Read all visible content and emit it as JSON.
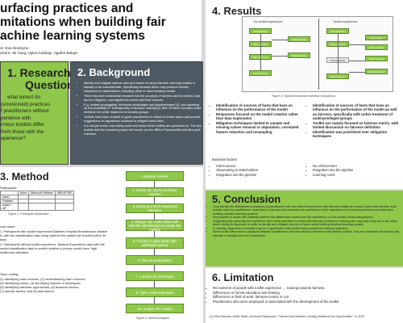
{
  "header": {
    "title_lines": [
      "urfacing practices and",
      "mitations when building fair",
      "achine learning systems"
    ],
    "authors_line1": "or: Eva Nontoyne",
    "authors_line2": "visors: Jie Yang, Ujwal Gadiraju, Agathe Balayn"
  },
  "research_question": {
    "title_line1": "1. Research",
    "title_line2": "Question",
    "lines": [
      "what extent do",
      "(envisioned) practices",
      "f practitioners without",
      "perience with",
      "irness toolkits differ",
      "from those with the",
      "xperience?"
    ]
  },
  "background": {
    "title": "2. Background",
    "items": [
      "Identify and mitigate various risks and harms of using Machine Learning models in industry is an essential task. Specifically because these may produce harmful outcomes for stakeholders, including unfair or discriminatory results.",
      "There has been substantial research into the concepts of fairness and its metrics, bias and its mitigation, and algorithmic harms and their sources.",
      "E.g. models propagating \"structural advantages and disadvantages\"[1], and speeding up the possibility of \"homogeneity of decision making\"[2]. Both of these concepts could reinforce the unfair treatment of minority groups.",
      "Toolkits have been created to guide practitioners to reflect on these topics and provide suggestions on algorithmic solutions to mitigate these risks.",
      "It is not yet known how widely used and useful these toolkits are perceived as. The two toolkits that this research project will involve are the IBM AI Fairness360 and Microsoft Fairlearn."
    ]
  },
  "method": {
    "title": "3. Method",
    "participants_label": "Participants:",
    "table": {
      "headers": [
        "",
        "None",
        "Microsoft Fairlearn",
        "IBM AIF360"
      ],
      "rows": [
        [
          "None",
          "",
          "",
          ""
        ],
        [
          "Fairlearn",
          "",
          "",
          ""
        ],
        [
          "Aware / AIF",
          "",
          "",
          ""
        ]
      ]
    },
    "table_caption": "Figure 1: Participant distribution",
    "use_cases_label": "Use cases:",
    "use_cases": [
      "1. Participants with toolkit experience:Diabetes Hospital Readmission dataset A, with the classification task being whether the patient will readmit within 30 days",
      "2. Participants without toolkit experience: Medical Expenditure data with the model classification task to predict whether a person would have 'high' healthcare utilization."
    ],
    "open_coding_label": "Open coding:",
    "open_coding": [
      "(1) identifying harm sources; (2) understanding harm sources;",
      "(3) identifying harms; (4) identifying impacts of techniques;",
      "(5) identifying alternate approaches; (6) business factors;",
      "(7) domain factors; and (8) task factors."
    ],
    "flow_steps": [
      "Literature Review",
      "2. Define ML harms and their sources",
      "3. Develop a semi-structured interview",
      "4. Design use cases  which will task the interviewees to create ML models",
      "5. Conduct a pilot study with participant group",
      "6. Recruit participants",
      "7. Conduct the interviews",
      "8. Open Code interviews",
      "10. Analyse the results"
    ],
    "flow_caption": "Figure 2: Method diagram"
  },
  "results": {
    "title": "4. Results",
    "diagram": {
      "left_label": "No toolkit experience",
      "right_label": "Toolkit experience",
      "left_boxes": [
        "Task definition",
        "Data collection",
        "Data exploration",
        "Model training"
      ],
      "left_side_boxes": [
        "Data Analysis",
        "Data Cleaning"
      ],
      "right_boxes": [
        "Task definition",
        "Data collection",
        "Preprocessing",
        "Model training"
      ],
      "right_side_boxes": [
        "Data Collect",
        "Data Analysis",
        "Data Cleaning",
        "Fairness metrics"
      ],
      "caption": "Figure 3: Typical envisioned workflow comparison"
    },
    "left_items": [
      "Identification of sources of harm that have an influence on the performance of the model",
      "Responses focused on the model creation rather than data exploration",
      "Mitigation techniques limited to sample and missing values removal or imputation, correlated feature reduction and resampling"
    ],
    "right_items": [
      "Identification of sources of harm that have an influence on the performance of the model as well as fairness, specifically with unfair treatment of underprivileged groups",
      "Toolkit use mainly focused on fairness metric, with limited discussion on fairness definition",
      "Identification was prioritised over mitigation techniques"
    ],
    "business_title": "Business factors",
    "business_left": [
      "Client source",
      "Showcasing to stakeholders",
      "Integration into the pipeline"
    ],
    "business_right": [
      "No enforcement",
      "Integration into the pipeline",
      "Learning curve"
    ]
  },
  "conclusion": {
    "title": "5. Conclusion",
    "items": [
      "Goal identify the differences in practices of practitioners with and without experience with fairness toolkits as a way to determine whether such toolkits raise the practitioners' awareness to fairness and advances the practitioner of the importance of considering fairness and bias when building machine learning systems.",
      "Not possible to asses with certainty whether this differences comes from the experience or from certain confounding factors.",
      "Suggesting that generally the experience and formal education in ethics and fairness in Machine Learning also may play a big role in the steps taken during the approach in order to identify and mitigate sources of harms while building Machine learning models.",
      "In industry, awareness of toolkits may be a hypothesis a little toolkit being needed for business practices",
      "Some of the differences in practices between practitioners with and without experience with fairness toolkits, may be correlated with factors only relevant in industry and not in academia."
    ]
  },
  "limitation": {
    "title": "6. Limitation",
    "items": [
      "Recruitment of people with toolkit experience → leaning towards fairness",
      "Differences in formal education and training",
      "Differences in field of work; fairness-centric or not",
      "Practitioners who were employed or associated with the development of the toolkit"
    ],
    "references": "[1] Solon Barocas, Moritz Hardt, and Arvind Narayanan. \"Fairness and Machine Learning limitations and Opportunities\". In: 2019"
  }
}
